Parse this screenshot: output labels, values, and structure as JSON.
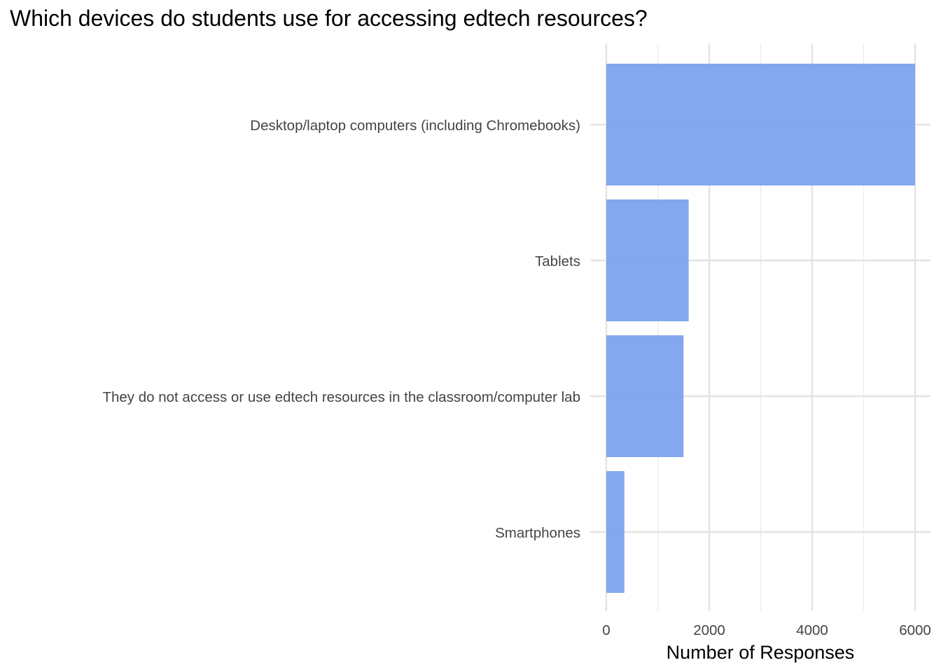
{
  "chart_data": {
    "type": "bar",
    "orientation": "horizontal",
    "title": "Which devices do students use for accessing edtech resources?",
    "xlabel": "Number of Responses",
    "ylabel": "",
    "categories": [
      "Desktop/laptop computers (including Chromebooks)",
      "Tablets",
      "They do not access or use edtech resources in the classroom/computer lab",
      "Smartphones"
    ],
    "values": [
      6000,
      1600,
      1500,
      350
    ],
    "xlim": [
      0,
      6200
    ],
    "x_ticks": [
      0,
      2000,
      4000,
      6000
    ],
    "x_tick_labels": [
      "0",
      "2000",
      "4000",
      "6000"
    ],
    "grid": true,
    "legend": "none",
    "bar_color": "#7aa0ee",
    "bar_opacity": 0.92
  }
}
